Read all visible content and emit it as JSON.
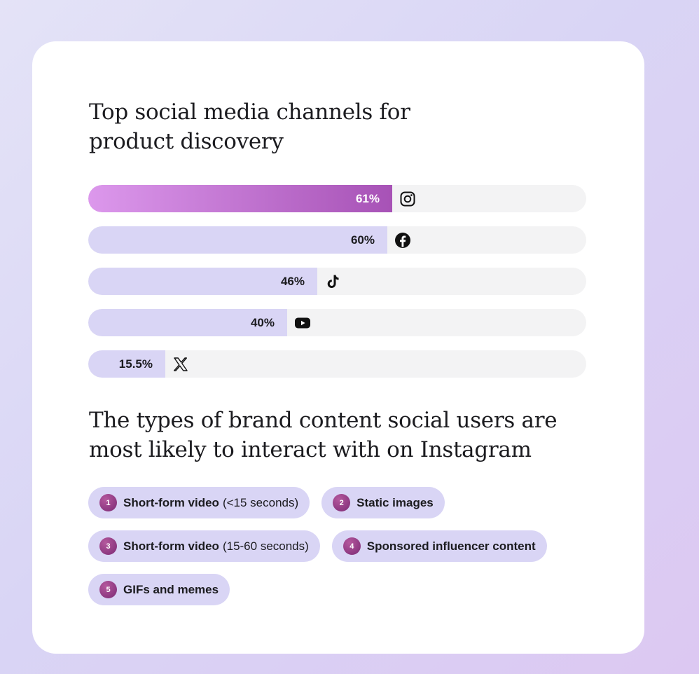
{
  "chart_data": {
    "type": "bar",
    "orientation": "horizontal",
    "title": "Top social media channels for product discovery",
    "title_lines": [
      "Top social media channels for",
      "product discovery"
    ],
    "categories": [
      "Instagram",
      "Facebook",
      "TikTok",
      "YouTube",
      "X"
    ],
    "values": [
      61,
      60,
      46,
      40,
      15.5
    ],
    "value_labels": [
      "61%",
      "60%",
      "46%",
      "40%",
      "15.5%"
    ],
    "icons": [
      "instagram-icon",
      "facebook-icon",
      "tiktok-icon",
      "youtube-icon",
      "x-icon"
    ],
    "xlim": [
      0,
      100
    ],
    "highlight_index": 0,
    "colors": {
      "bar": "#d9d5f5",
      "highlight_start": "#dc98ec",
      "highlight_end": "#a752b6",
      "track": "#f3f3f4"
    }
  },
  "content": {
    "title_lines": [
      "The types of brand content social users are",
      "most likely to interact with on Instagram"
    ],
    "items": [
      {
        "rank": "1",
        "label": "Short-form video",
        "note": "(<15 seconds)"
      },
      {
        "rank": "2",
        "label": "Static images",
        "note": ""
      },
      {
        "rank": "3",
        "label": "Short-form video",
        "note": "(15-60 seconds)"
      },
      {
        "rank": "4",
        "label": "Sponsored influencer content",
        "note": ""
      },
      {
        "rank": "5",
        "label": "GIFs and memes",
        "note": ""
      }
    ]
  }
}
